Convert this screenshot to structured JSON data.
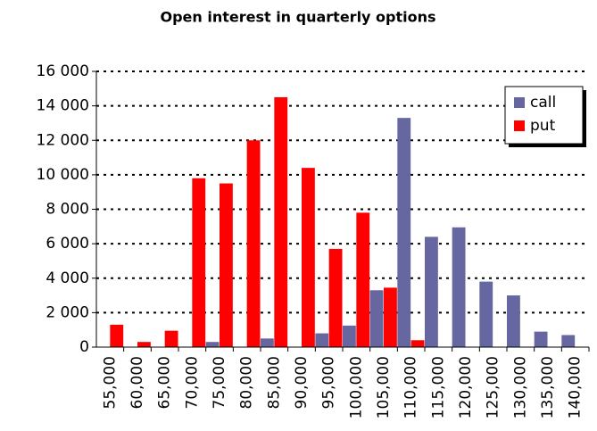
{
  "chart_data": {
    "type": "bar",
    "title": "Open interest in quarterly options",
    "categories": [
      "55,000",
      "60,000",
      "65,000",
      "70,000",
      "75,000",
      "80,000",
      "85,000",
      "90,000",
      "95,000",
      "100,000",
      "105,000",
      "110,000",
      "115,000",
      "120,000",
      "125,000",
      "130,000",
      "135,000",
      "140,000"
    ],
    "series": [
      {
        "name": "call",
        "color": "#6666a0",
        "values": [
          0,
          0,
          0,
          0,
          300,
          0,
          500,
          0,
          800,
          1250,
          3300,
          13300,
          6400,
          6950,
          3800,
          3000,
          900,
          700
        ]
      },
      {
        "name": "put",
        "color": "#ff0000",
        "values": [
          1300,
          300,
          950,
          9800,
          9500,
          12000,
          14500,
          10400,
          5700,
          7800,
          3450,
          400,
          0,
          0,
          0,
          0,
          0,
          0
        ]
      }
    ],
    "ylim": [
      0,
      16000
    ],
    "yticks": [
      0,
      {
        "value": 2000,
        "label": "2 000"
      },
      {
        "value": 4000,
        "label": "4 000"
      },
      {
        "value": 6000,
        "label": "6 000"
      },
      {
        "value": 8000,
        "label": "8 000"
      },
      {
        "value": 10000,
        "label": "10 000"
      },
      {
        "value": 12000,
        "label": "12 000"
      },
      {
        "value": 14000,
        "label": "14 000"
      },
      {
        "value": 16000,
        "label": "16 000"
      }
    ],
    "grid": true,
    "legend": "top-right"
  }
}
